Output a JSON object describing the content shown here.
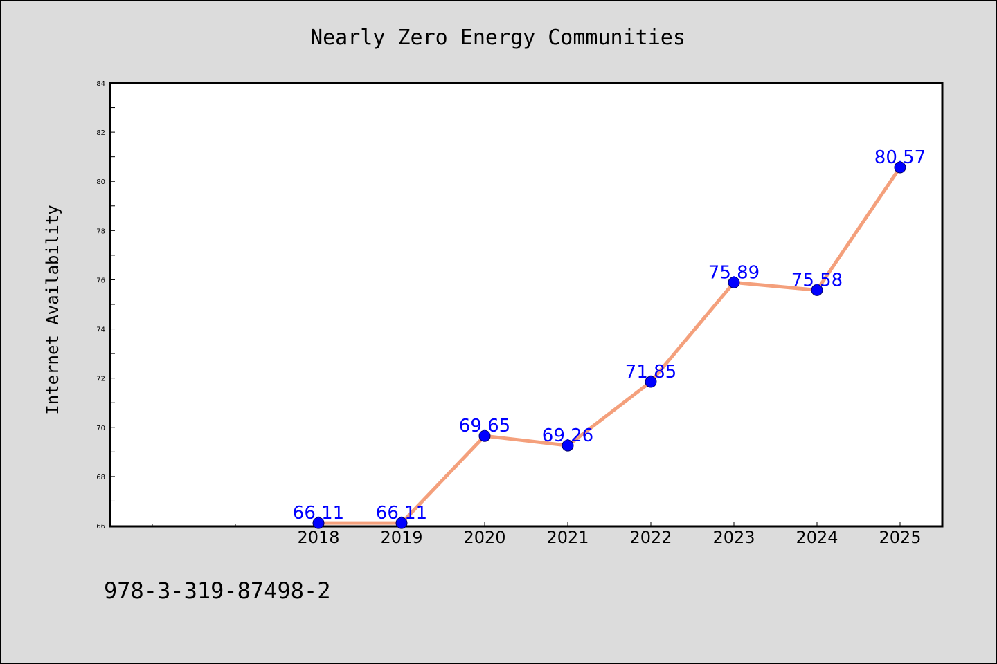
{
  "chart_data": {
    "type": "line",
    "title": "Nearly Zero Energy Communities",
    "xlabel": "",
    "ylabel": "Internet Availability",
    "categories": [
      "2018",
      "2019",
      "2020",
      "2021",
      "2022",
      "2023",
      "2024",
      "2025"
    ],
    "series": [
      {
        "values": [
          66.11,
          66.11,
          69.65,
          69.26,
          71.85,
          75.89,
          75.58,
          80.57
        ],
        "data_labels": [
          "66.11",
          "66.11",
          "69.65",
          "69.26",
          "71.85",
          "75.89",
          "75.58",
          "80.57"
        ]
      }
    ],
    "ylim": [
      66,
      84
    ],
    "yticks": [
      "66",
      "68",
      "70",
      "72",
      "74",
      "76",
      "78",
      "80",
      "82",
      "84"
    ],
    "grid": false,
    "legend": "none",
    "colors": {
      "line": "#f4a07c",
      "marker": "#0000ff",
      "data_label": "#0000ff",
      "background": "#dcdcdc",
      "plot_area": "#ffffff"
    }
  },
  "footnote": "978-3-319-87498-2"
}
